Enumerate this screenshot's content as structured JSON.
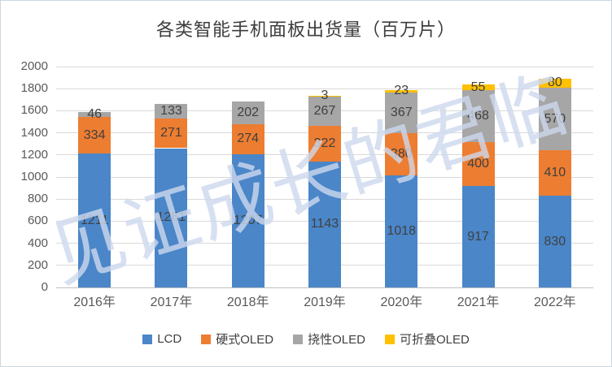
{
  "title": "各类智能手机面板出货量（百万片）",
  "watermark": "见证成长的君临",
  "colors": {
    "lcd_blue": "#4A86C8",
    "rigid_oled_orange": "#ED7D31",
    "flexible_oled_gray": "#A6A6A6",
    "foldable_oled_yellow": "#FFC000",
    "gridline": "#D9D9D9",
    "axis_line": "#BFBFBF",
    "bar_label": "#404040",
    "tick_label": "#595959",
    "title_text": "#3D3D3D"
  },
  "chart_data": {
    "type": "bar",
    "stacked": true,
    "title": "各类智能手机面板出货量（百万片）",
    "xlabel": "",
    "ylabel": "",
    "categories": [
      "2016年",
      "2017年",
      "2018年",
      "2019年",
      "2020年",
      "2021年",
      "2022年"
    ],
    "series": [
      {
        "name": "LCD",
        "color": "#4A86C8",
        "values": [
          1211,
          1261,
          1207,
          1143,
          1018,
          917,
          830
        ]
      },
      {
        "name": "硬式OLED",
        "color": "#ED7D31",
        "values": [
          334,
          271,
          274,
          322,
          380,
          400,
          410
        ]
      },
      {
        "name": "挠性OLED",
        "color": "#A6A6A6",
        "values": [
          46,
          133,
          202,
          267,
          367,
          468,
          570
        ]
      },
      {
        "name": "可折叠OLED",
        "color": "#FFC000",
        "values": [
          0,
          0,
          0,
          3,
          23,
          55,
          80
        ]
      }
    ],
    "ylim": [
      0,
      2000
    ],
    "ytick_step": 200,
    "yticks": [
      0,
      200,
      400,
      600,
      800,
      1000,
      1200,
      1400,
      1600,
      1800,
      2000
    ],
    "grid": true,
    "legend_position": "bottom",
    "data_labels": true
  }
}
